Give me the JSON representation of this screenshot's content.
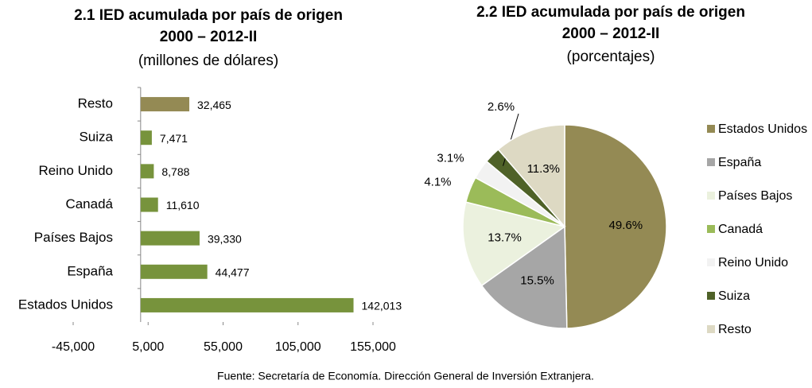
{
  "chart_data": [
    {
      "type": "hbar",
      "title": "2.1 IED acumulada por país de origen",
      "period": "2000 – 2012-II",
      "subtitle": "(millones de dólares)",
      "categories": [
        "Resto",
        "Suiza",
        "Reino Unido",
        "Canadá",
        "Países Bajos",
        "España",
        "Estados Unidos"
      ],
      "values": [
        32465,
        7471,
        8788,
        11610,
        39330,
        44477,
        142013
      ],
      "value_labels": [
        "32,465",
        "7,471",
        "8,788",
        "11,610",
        "39,330",
        "44,477",
        "142,013"
      ],
      "colors": [
        "#948a54",
        "#77933c",
        "#77933c",
        "#77933c",
        "#77933c",
        "#77933c",
        "#77933c"
      ],
      "xlim": [
        -45000,
        155000
      ],
      "xticks": [
        {
          "value": -45000,
          "label": "-45,000"
        },
        {
          "value": 5000,
          "label": "5,000"
        },
        {
          "value": 55000,
          "label": "55,000"
        },
        {
          "value": 105000,
          "label": "105,000"
        },
        {
          "value": 155000,
          "label": "155,000"
        }
      ]
    },
    {
      "type": "pie",
      "title": "2.2 IED acumulada por país de origen",
      "period": "2000 – 2012-II",
      "subtitle": "(porcentajes)",
      "categories": [
        "Estados Unidos",
        "España",
        "Países Bajos",
        "Canadá",
        "Reino Unido",
        "Suiza",
        "Resto"
      ],
      "values": [
        49.6,
        15.5,
        13.7,
        4.1,
        3.1,
        2.6,
        11.3
      ],
      "value_labels": [
        "49.6%",
        "15.5%",
        "13.7%",
        "4.1%",
        "3.1%",
        "2.6%",
        "11.3%"
      ],
      "colors": [
        "#948a54",
        "#a6a6a6",
        "#ebf1de",
        "#9bbb59",
        "#f2f2f2",
        "#4f6228",
        "#ddd9c3"
      ],
      "legend": "right"
    }
  ],
  "source": "Fuente: Secretaría de Economía. Dirección General de Inversión Extranjera."
}
